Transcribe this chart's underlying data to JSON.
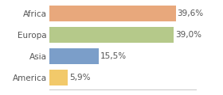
{
  "categories": [
    "America",
    "Asia",
    "Europa",
    "Africa"
  ],
  "values": [
    5.9,
    15.5,
    39.0,
    39.6
  ],
  "colors": [
    "#f2c96a",
    "#7b9ec9",
    "#b5c98a",
    "#e8a87c"
  ],
  "labels": [
    "5,9%",
    "15,5%",
    "39,0%",
    "39,6%"
  ],
  "xlim": [
    0,
    46
  ],
  "background_color": "#ffffff",
  "bar_height": 0.75,
  "label_fontsize": 7.5,
  "tick_fontsize": 7.5,
  "label_color": "#555555",
  "tick_color": "#555555",
  "spine_color": "#cccccc"
}
